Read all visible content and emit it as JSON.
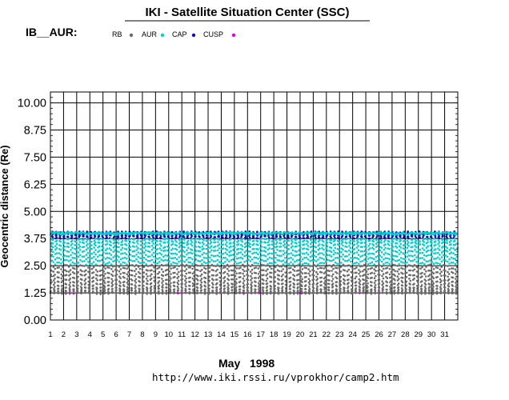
{
  "chart_data": {
    "type": "scatter",
    "title": "IKI - Satellite Situation Center (SSC)",
    "satellite_label": "IB__AUR:",
    "legend": [
      {
        "name": "RB",
        "color": "#6b6b6b"
      },
      {
        "name": "AUR",
        "color": "#00d0d0"
      },
      {
        "name": "CAP",
        "color": "#1010b0"
      },
      {
        "name": "CUSP",
        "color": "#e000e0"
      }
    ],
    "ylabel": "Geocentric distance (Re)",
    "y_ticks": [
      "0.00",
      "1.25",
      "2.50",
      "3.75",
      "5.00",
      "6.25",
      "7.50",
      "8.75",
      "10.00"
    ],
    "ylim": [
      0,
      10.5
    ],
    "x_ticks": [
      "1",
      "2",
      "3",
      "4",
      "5",
      "6",
      "7",
      "8",
      "9",
      "10",
      "11",
      "12",
      "13",
      "14",
      "15",
      "16",
      "17",
      "18",
      "19",
      "20",
      "21",
      "22",
      "23",
      "24",
      "25",
      "26",
      "27",
      "28",
      "29",
      "30",
      "31"
    ],
    "xlim": [
      1,
      32
    ],
    "x_month": "May",
    "x_year": "1998",
    "grid": true,
    "footer_url": "http://www.iki.rssi.ru/vprokhor/camp2.htm",
    "orbit": {
      "orbits_per_day": 3.4,
      "r_min": 1.22,
      "r_max": 4.05,
      "rb_max": 2.55,
      "aur_range": [
        2.55,
        3.75
      ],
      "cap_range": [
        3.75,
        4.05
      ],
      "cusp_range": [
        1.22,
        1.3
      ]
    }
  }
}
